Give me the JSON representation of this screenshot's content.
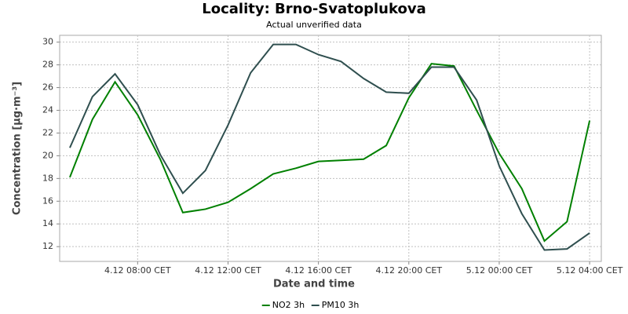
{
  "chart_data": {
    "type": "line",
    "title": "Locality: Brno-Svatoplukova",
    "subtitle": "Actual unverified data",
    "x_label": "Date and time",
    "y_label": "Concentration [µg·m⁻³]",
    "x": [
      "4.12 05:00",
      "4.12 06:00",
      "4.12 07:00",
      "4.12 08:00",
      "4.12 09:00",
      "4.12 10:00",
      "4.12 11:00",
      "4.12 12:00",
      "4.12 13:00",
      "4.12 14:00",
      "4.12 15:00",
      "4.12 16:00",
      "4.12 17:00",
      "4.12 18:00",
      "4.12 19:00",
      "4.12 20:00",
      "4.12 21:00",
      "4.12 22:00",
      "4.12 23:00",
      "5.12 00:00",
      "5.12 01:00",
      "5.12 02:00",
      "5.12 03:00",
      "5.12 04:00"
    ],
    "series": [
      {
        "name": "NO2 3h",
        "color": "#008000",
        "values": [
          18.1,
          23.2,
          26.5,
          23.6,
          19.7,
          15.0,
          15.3,
          15.9,
          17.1,
          18.4,
          18.9,
          19.5,
          19.6,
          19.7,
          20.9,
          25.1,
          28.1,
          27.9,
          24.0,
          20.2,
          17.1,
          12.5,
          14.2,
          23.1
        ]
      },
      {
        "name": "PM10 3h",
        "color": "#2f4f4f",
        "values": [
          20.7,
          25.2,
          27.2,
          24.5,
          20.1,
          16.7,
          18.7,
          22.7,
          27.3,
          29.8,
          29.8,
          28.9,
          28.3,
          26.8,
          25.6,
          25.5,
          27.8,
          27.8,
          24.9,
          19.1,
          14.9,
          11.7,
          11.8,
          13.2
        ]
      }
    ],
    "xlim": [
      "4.12 04:33",
      "5.12 04:31"
    ],
    "xticks": [
      {
        "value": "4.12 08:00",
        "label": "4.12 08:00 CET"
      },
      {
        "value": "4.12 12:00",
        "label": "4.12 12:00 CET"
      },
      {
        "value": "4.12 16:00",
        "label": "4.12 16:00 CET"
      },
      {
        "value": "4.12 20:00",
        "label": "4.12 20:00 CET"
      },
      {
        "value": "5.12 00:00",
        "label": "5.12 00:00 CET"
      },
      {
        "value": "5.12 04:00",
        "label": "5.12 04:00 CET"
      }
    ],
    "ylim": [
      10.7,
      30.6
    ],
    "yticks": [
      12,
      14,
      16,
      18,
      20,
      22,
      24,
      26,
      28,
      30
    ],
    "grid": true,
    "legend": "bottom"
  }
}
